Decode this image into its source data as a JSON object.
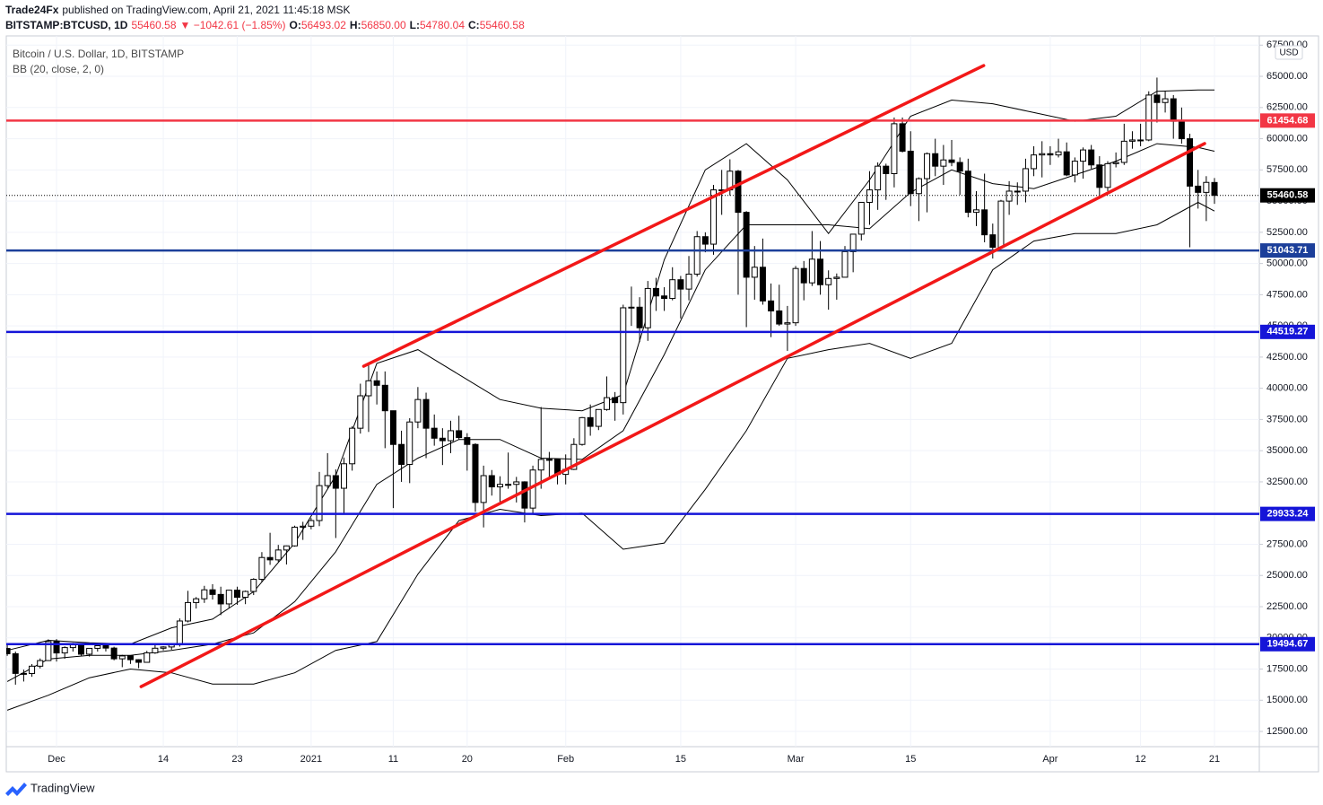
{
  "header": {
    "publisher": "Trade24Fx",
    "published": "published on TradingView.com, April 21, 2021 11:45:18 MSK",
    "symbol": "BITSTAMP:BTCUSD, 1D",
    "price": "55460.58",
    "change": "▼ −1042.61 (−1.85%)",
    "ohlc": [
      {
        "label": "O:",
        "value": "56493.02"
      },
      {
        "label": "H:",
        "value": "56850.00"
      },
      {
        "label": "L:",
        "value": "54780.04"
      },
      {
        "label": "C:",
        "value": "55460.58"
      }
    ]
  },
  "legend": {
    "instrument": "Bitcoin / U.S. Dollar, 1D, BITSTAMP",
    "indicator": "BB (20, close, 2, 0)"
  },
  "currency": "USD",
  "footer": {
    "brand": "TradingView"
  },
  "chart_data": {
    "type": "candlestick",
    "categories": [
      null,
      null,
      null,
      null,
      null,
      null,
      "Dec",
      null,
      null,
      null,
      null,
      null,
      null,
      null,
      null,
      null,
      null,
      null,
      null,
      "14",
      null,
      null,
      null,
      null,
      null,
      null,
      null,
      null,
      "23",
      null,
      null,
      null,
      null,
      null,
      null,
      null,
      null,
      "2021",
      null,
      null,
      null,
      null,
      null,
      null,
      null,
      null,
      null,
      "11",
      null,
      null,
      null,
      null,
      null,
      null,
      null,
      null,
      "20",
      null,
      null,
      null,
      null,
      null,
      null,
      null,
      null,
      null,
      null,
      null,
      "Feb",
      null,
      null,
      null,
      null,
      null,
      null,
      null,
      null,
      null,
      null,
      null,
      null,
      null,
      "15",
      null,
      null,
      null,
      null,
      null,
      null,
      null,
      null,
      null,
      null,
      null,
      null,
      null,
      "Mar",
      null,
      null,
      null,
      null,
      null,
      null,
      null,
      null,
      null,
      null,
      null,
      null,
      null,
      "15",
      null,
      null,
      null,
      null,
      null,
      null,
      null,
      null,
      null,
      null,
      null,
      null,
      null,
      null,
      null,
      null,
      "Apr",
      null,
      null,
      null,
      null,
      null,
      null,
      null,
      null,
      null,
      null,
      "12",
      null,
      null,
      null,
      null,
      null,
      null,
      null,
      null,
      "21"
    ],
    "open": [
      19150,
      18730,
      17150,
      17140,
      17730,
      18180,
      19700,
      18790,
      19220,
      19440,
      18690,
      19160,
      19370,
      19180,
      18320,
      18550,
      18250,
      18040,
      18800,
      19170,
      19270,
      19440,
      21350,
      22830,
      23130,
      23850,
      23480,
      22720,
      23820,
      23250,
      23720,
      24690,
      26440,
      26250,
      27040,
      27370,
      28870,
      28950,
      29400,
      32200,
      33000,
      31990,
      33950,
      36800,
      39400,
      40600,
      40240,
      38200,
      35500,
      33900,
      37300,
      39100,
      36800,
      36000,
      35800,
      36600,
      36050,
      35500,
      30850,
      33000,
      32100,
      32300,
      32300,
      32500,
      30400,
      33450,
      34300,
      34300,
      33100,
      33500,
      35500,
      37650,
      36950,
      38300,
      39250,
      38850,
      46450,
      46500,
      44850,
      48000,
      47400,
      47200,
      48700,
      47950,
      49150,
      52150,
      51550,
      55900,
      55900,
      57400,
      54100,
      48900,
      49700,
      47000,
      46200,
      45150,
      45250,
      49600,
      48450,
      50350,
      48300,
      48800,
      48900,
      50950,
      52350,
      54900,
      55900,
      57800,
      57200,
      61200,
      59000,
      55600,
      56800,
      58800,
      57800,
      58300,
      58100,
      57400,
      54100,
      54300,
      52300,
      51300,
      55000,
      55800,
      55800,
      57600,
      58700,
      58800,
      58700,
      58950,
      57100,
      58200,
      59100,
      57900,
      56100,
      58000,
      58100,
      59800,
      59900,
      59900,
      63500,
      62900,
      63200,
      61400,
      60000,
      56200,
      55700,
      56493.02
    ],
    "high": [
      19480,
      18900,
      17450,
      17900,
      18350,
      19880,
      19900,
      19320,
      19600,
      19500,
      19170,
      19420,
      19420,
      19290,
      18640,
      18560,
      18290,
      18960,
      19410,
      19330,
      19560,
      21560,
      23770,
      23270,
      24170,
      24300,
      24100,
      23850,
      24100,
      23790,
      24780,
      26870,
      28420,
      27450,
      27400,
      28990,
      29300,
      29600,
      33300,
      34800,
      33500,
      34450,
      36950,
      40370,
      41950,
      41350,
      41350,
      38200,
      36600,
      37600,
      40100,
      39650,
      37900,
      36800,
      37400,
      37800,
      36400,
      35600,
      33800,
      33450,
      32950,
      34850,
      32900,
      32550,
      33800,
      38500,
      34900,
      34300,
      34700,
      36000,
      37700,
      38700,
      38300,
      40950,
      39700,
      46700,
      48150,
      47300,
      48600,
      48850,
      48100,
      49700,
      49000,
      50600,
      52600,
      52500,
      56300,
      57500,
      58350,
      57500,
      54200,
      51400,
      52000,
      48400,
      48300,
      46600,
      49800,
      50200,
      52600,
      51800,
      49450,
      49200,
      51400,
      52350,
      54900,
      57400,
      58100,
      58000,
      61700,
      61700,
      60600,
      56900,
      58900,
      60000,
      59500,
      59900,
      58500,
      58400,
      55800,
      57200,
      53200,
      55100,
      56600,
      56500,
      58400,
      59400,
      59800,
      59400,
      60000,
      59700,
      58500,
      59300,
      59500,
      58600,
      58200,
      58900,
      61200,
      60600,
      61200,
      63800,
      64900,
      63800,
      63500,
      62500,
      60400,
      57500,
      57000,
      56850
    ],
    "low": [
      18560,
      16250,
      16500,
      16880,
      17550,
      18180,
      18100,
      18330,
      18900,
      18570,
      18500,
      18900,
      18910,
      18200,
      17650,
      17910,
      17570,
      18020,
      18720,
      19000,
      19050,
      19300,
      21240,
      22350,
      22800,
      23070,
      21820,
      22390,
      22650,
      22700,
      23430,
      24500,
      25850,
      26090,
      25880,
      27310,
      27850,
      28700,
      28950,
      32000,
      28000,
      29950,
      33400,
      36370,
      36500,
      38700,
      35200,
      30400,
      32500,
      32400,
      36800,
      34400,
      35400,
      33850,
      34800,
      35900,
      33400,
      30100,
      28850,
      31400,
      30900,
      31950,
      30850,
      29250,
      29900,
      31950,
      32850,
      32300,
      32300,
      33450,
      35400,
      36200,
      36650,
      38200,
      37400,
      37900,
      45000,
      43700,
      43800,
      46200,
      46200,
      47050,
      45600,
      47050,
      48950,
      50900,
      50700,
      53900,
      55450,
      47500,
      44900,
      47100,
      46700,
      44100,
      45000,
      43000,
      45000,
      47050,
      48200,
      47500,
      46300,
      47100,
      48900,
      49300,
      51850,
      53100,
      54300,
      55100,
      56100,
      58900,
      54600,
      53400,
      54100,
      57000,
      56300,
      57800,
      55500,
      53700,
      53000,
      51700,
      50400,
      51200,
      53900,
      54700,
      54900,
      57000,
      56900,
      57900,
      58500,
      57000,
      56500,
      56800,
      57600,
      55500,
      55800,
      57700,
      57900,
      59200,
      59400,
      59800,
      61300,
      62100,
      60000,
      59600,
      51300,
      54400,
      53400,
      54780.04
    ],
    "close": [
      18730,
      17150,
      17140,
      17730,
      18180,
      19700,
      18790,
      19220,
      19440,
      18690,
      19160,
      19370,
      19180,
      18320,
      18550,
      18250,
      18040,
      18800,
      19170,
      19270,
      19440,
      21350,
      22830,
      23130,
      23850,
      23480,
      22720,
      23820,
      23250,
      23720,
      24690,
      26440,
      26250,
      27040,
      27370,
      28870,
      28950,
      29400,
      32200,
      33000,
      31990,
      33950,
      36800,
      39400,
      40600,
      40240,
      38200,
      35500,
      33900,
      37300,
      39100,
      36800,
      36000,
      35800,
      36600,
      36050,
      35500,
      30850,
      33000,
      32100,
      32300,
      32300,
      32500,
      30400,
      33450,
      34300,
      34300,
      33100,
      33500,
      35500,
      37650,
      36950,
      38300,
      39250,
      38850,
      46450,
      46500,
      44850,
      48000,
      47400,
      47200,
      48700,
      47950,
      49150,
      52150,
      51550,
      55900,
      55900,
      57400,
      54100,
      48900,
      49700,
      47000,
      46200,
      45150,
      45250,
      49600,
      48450,
      50350,
      48300,
      48800,
      48900,
      50950,
      52350,
      54900,
      55900,
      57800,
      57200,
      61200,
      59000,
      55600,
      56800,
      58800,
      57800,
      58300,
      58100,
      57400,
      54100,
      54300,
      52300,
      51300,
      55000,
      55800,
      55800,
      57600,
      58700,
      58800,
      58700,
      58950,
      57100,
      58200,
      59100,
      57900,
      56100,
      58000,
      58100,
      59800,
      59900,
      59900,
      63500,
      62900,
      63200,
      61400,
      60000,
      56200,
      55700,
      56500,
      55460.58
    ],
    "up_color": "#ffffff",
    "down_color": "#000000",
    "bands": {
      "color": "#000000",
      "x": [
        0,
        5,
        10,
        15,
        20,
        25,
        30,
        35,
        40,
        45,
        50,
        55,
        60,
        65,
        70,
        75,
        80,
        85,
        90,
        95,
        100,
        105,
        110,
        115,
        120,
        125,
        130,
        135,
        140,
        145,
        147
      ],
      "upper": [
        19000,
        19800,
        19600,
        19500,
        20800,
        21500,
        23700,
        27600,
        33000,
        42000,
        43100,
        41100,
        39100,
        38400,
        38200,
        39500,
        50300,
        57500,
        59600,
        56700,
        52400,
        56700,
        61800,
        63100,
        62800,
        62100,
        61400,
        61800,
        63800,
        63900,
        63900
      ],
      "basis": [
        16500,
        18300,
        18600,
        18600,
        19000,
        19500,
        20400,
        22900,
        26900,
        32300,
        34400,
        35900,
        35900,
        34400,
        34300,
        36600,
        42700,
        49500,
        53100,
        53100,
        53100,
        52800,
        55700,
        57500,
        56400,
        56000,
        57100,
        58200,
        59600,
        59300,
        59000
      ],
      "lower": [
        14200,
        15400,
        16800,
        17500,
        17200,
        16300,
        16300,
        17200,
        19000,
        19700,
        25100,
        29400,
        30300,
        29800,
        30000,
        27100,
        27600,
        31900,
        36600,
        42400,
        43100,
        43600,
        42400,
        43600,
        49500,
        51800,
        52400,
        52400,
        53100,
        54900,
        54200
      ]
    },
    "trend_lines": [
      {
        "color": "#f21818",
        "x": [
          43.4,
          118.9
        ],
        "y": [
          41770,
          65860
        ]
      },
      {
        "color": "#f21818",
        "x": [
          16.3,
          145.8
        ],
        "y": [
          16090,
          59610
        ]
      }
    ],
    "levels": [
      {
        "value": 61454.68,
        "color": "#f23645"
      },
      {
        "value": 51043.71,
        "color": "#1c3f9a"
      },
      {
        "value": 44519.27,
        "color": "#1515d8"
      },
      {
        "value": 29933.24,
        "color": "#1515d8"
      },
      {
        "value": 19494.67,
        "color": "#1515d8"
      }
    ],
    "last": {
      "value": 55460.58,
      "color": "#000000"
    },
    "xlim": [
      -0.12,
      152.46
    ],
    "ylim": [
      11280,
      68240
    ],
    "yticks": [
      {
        "value": 12500,
        "label": "12500.00"
      },
      {
        "value": 15000,
        "label": "15000.00"
      },
      {
        "value": 17500,
        "label": "17500.00"
      },
      {
        "value": 20000,
        "label": "20000.00"
      },
      {
        "value": 22500,
        "label": "22500.00"
      },
      {
        "value": 25000,
        "label": "25000.00"
      },
      {
        "value": 27500,
        "label": "27500.00"
      },
      {
        "value": 30000,
        "label": "30000.00"
      },
      {
        "value": 32500,
        "label": "32500.00"
      },
      {
        "value": 35000,
        "label": "35000.00"
      },
      {
        "value": 37500,
        "label": "37500.00"
      },
      {
        "value": 40000,
        "label": "40000.00"
      },
      {
        "value": 42500,
        "label": "42500.00"
      },
      {
        "value": 45000,
        "label": "45000.00"
      },
      {
        "value": 47500,
        "label": "47500.00"
      },
      {
        "value": 50000,
        "label": "50000.00"
      },
      {
        "value": 52500,
        "label": "52500.00"
      },
      {
        "value": 55000,
        "label": "55000.00"
      },
      {
        "value": 57500,
        "label": "57500.00"
      },
      {
        "value": 60000,
        "label": "60000.00"
      },
      {
        "value": 62500,
        "label": "62500.00"
      },
      {
        "value": 65000,
        "label": "65000.00"
      },
      {
        "value": 67500,
        "label": "67500.00"
      }
    ],
    "grid": true
  }
}
